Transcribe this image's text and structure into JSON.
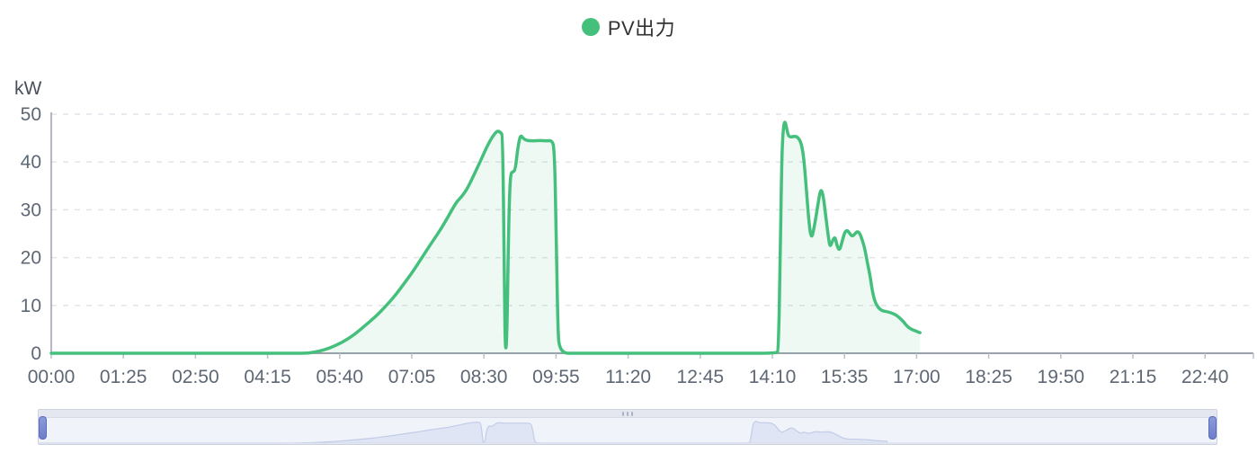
{
  "legend": {
    "label": "PV出力"
  },
  "colors": {
    "series_green": "#44c07c",
    "series_fill": "rgba(68,192,124,0.09)",
    "axis_line": "#9aa1ac",
    "grid_line": "#e2e4ea",
    "tick_mark": "#bac0cb",
    "axis_text": "#5e6774",
    "legend_text": "#333333",
    "slider_bg": "#f0f3fa",
    "slider_border": "#ccd2e0",
    "slider_shadow_fill": "#dfe5f4",
    "slider_shadow_line": "#c3cce8",
    "slider_handle": "#7585cb"
  },
  "chart_data": {
    "type": "area",
    "title": "PV出力",
    "ylabel": "kW",
    "xlabel": "",
    "grid": true,
    "legend_position": "top-center",
    "ylim": [
      0,
      50
    ],
    "y_ticks": [
      0,
      10,
      20,
      30,
      40,
      50
    ],
    "xlim_minutes": [
      0,
      1417
    ],
    "x_ticks": {
      "minutes": [
        0,
        85,
        170,
        255,
        340,
        425,
        510,
        595,
        680,
        765,
        850,
        935,
        1020,
        1105,
        1190,
        1275,
        1360
      ],
      "labels": [
        "00:00",
        "01:25",
        "02:50",
        "04:15",
        "05:40",
        "07:05",
        "08:30",
        "09:55",
        "11:20",
        "12:45",
        "14:10",
        "15:35",
        "17:00",
        "18:25",
        "19:50",
        "21:15",
        "22:40"
      ]
    },
    "series": [
      {
        "name": "PV出力",
        "color": "#44c07c",
        "points_min_kw": [
          [
            0,
            0
          ],
          [
            70,
            0
          ],
          [
            140,
            0
          ],
          [
            210,
            0
          ],
          [
            280,
            0
          ],
          [
            300,
            0
          ],
          [
            310,
            0.2
          ],
          [
            322,
            0.7
          ],
          [
            334,
            1.5
          ],
          [
            346,
            2.6
          ],
          [
            358,
            4.0
          ],
          [
            370,
            5.8
          ],
          [
            382,
            7.6
          ],
          [
            394,
            9.8
          ],
          [
            406,
            12.2
          ],
          [
            416,
            14.6
          ],
          [
            426,
            17.0
          ],
          [
            437,
            20.0
          ],
          [
            448,
            23.0
          ],
          [
            458,
            25.6
          ],
          [
            468,
            28.6
          ],
          [
            477,
            31.5
          ],
          [
            484,
            32.8
          ],
          [
            491,
            34.6
          ],
          [
            499,
            37.6
          ],
          [
            507,
            40.6
          ],
          [
            513,
            43.0
          ],
          [
            519,
            45.0
          ],
          [
            524,
            46.2
          ],
          [
            527,
            46.5
          ],
          [
            530,
            46.1
          ],
          [
            532,
            45.6
          ],
          [
            534,
            18
          ],
          [
            535,
            0.4
          ],
          [
            537,
            2
          ],
          [
            539,
            26
          ],
          [
            541,
            37.6
          ],
          [
            544,
            37.9
          ],
          [
            547,
            38.3
          ],
          [
            550,
            43
          ],
          [
            553,
            45.7
          ],
          [
            556,
            45
          ],
          [
            560,
            44.5
          ],
          [
            568,
            44.4
          ],
          [
            576,
            44.5
          ],
          [
            584,
            44.4
          ],
          [
            590,
            44.5
          ],
          [
            593,
            43
          ],
          [
            595,
            28
          ],
          [
            597,
            6
          ],
          [
            599,
            0
          ],
          [
            620,
            0
          ],
          [
            660,
            0
          ],
          [
            700,
            0
          ],
          [
            740,
            0
          ],
          [
            780,
            0
          ],
          [
            820,
            0
          ],
          [
            855,
            0
          ],
          [
            857,
            0.5
          ],
          [
            859,
            16
          ],
          [
            861,
            41
          ],
          [
            863,
            47.6
          ],
          [
            865,
            48.6
          ],
          [
            867,
            46.8
          ],
          [
            869,
            45.4
          ],
          [
            872,
            45.2
          ],
          [
            876,
            45.4
          ],
          [
            880,
            45.2
          ],
          [
            884,
            44
          ],
          [
            887,
            41
          ],
          [
            890,
            34.5
          ],
          [
            893,
            27.5
          ],
          [
            896,
            23.6
          ],
          [
            900,
            27
          ],
          [
            904,
            31.5
          ],
          [
            907,
            34.5
          ],
          [
            910,
            33
          ],
          [
            913,
            28.5
          ],
          [
            916,
            24.3
          ],
          [
            918,
            22.1
          ],
          [
            921,
            23.6
          ],
          [
            924,
            24.4
          ],
          [
            926,
            22.6
          ],
          [
            929,
            21.4
          ],
          [
            932,
            23.2
          ],
          [
            935,
            25.2
          ],
          [
            938,
            25.8
          ],
          [
            941,
            25.1
          ],
          [
            944,
            24.4
          ],
          [
            947,
            24.9
          ],
          [
            950,
            25.5
          ],
          [
            953,
            25.1
          ],
          [
            956,
            23.7
          ],
          [
            959,
            21.8
          ],
          [
            962,
            18.9
          ],
          [
            965,
            16.4
          ],
          [
            968,
            12.9
          ],
          [
            971,
            10.7
          ],
          [
            975,
            9.5
          ],
          [
            979,
            8.9
          ],
          [
            985,
            8.7
          ],
          [
            991,
            8.4
          ],
          [
            997,
            7.9
          ],
          [
            1001,
            7.2
          ],
          [
            1005,
            6.5
          ],
          [
            1009,
            5.6
          ],
          [
            1013,
            5.1
          ],
          [
            1017,
            4.8
          ],
          [
            1021,
            4.5
          ],
          [
            1024,
            4.3
          ]
        ]
      }
    ]
  },
  "datazoom": {
    "range_percent": [
      0,
      100
    ]
  }
}
